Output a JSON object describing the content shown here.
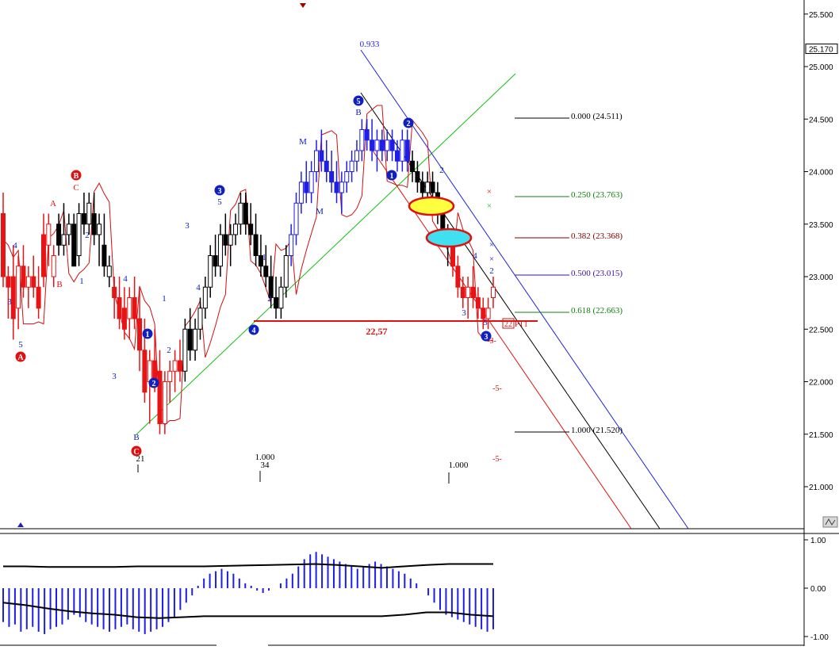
{
  "colors": {
    "background": "#ffffff",
    "bull_candle": "#1e1ee6",
    "bear_candle": "#e61414",
    "neutral_candle": "#000000",
    "ma_line": "#d01010",
    "channel_green": "#10c010",
    "channel_blue": "#2020e0",
    "channel_black": "#000000",
    "channel_red": "#e01010",
    "wave_blue": "#1020c0",
    "wave_red": "#e01010",
    "ellipse_yellow": "#ffff40",
    "ellipse_cyan": "#40e0f0",
    "ellipse_border": "#e01010",
    "osc_bar": "#1e1ee6"
  },
  "price_axis": {
    "ticks": [
      "25.500",
      "25.000",
      "24.500",
      "24.000",
      "23.500",
      "23.000",
      "22.500",
      "22.000",
      "21.500",
      "21.000"
    ],
    "current_label": "25.170",
    "corner_icon": "zoom-icon"
  },
  "osc_axis": {
    "ticks": [
      "1.00",
      "0.00",
      "-1.00"
    ]
  },
  "fib_levels": [
    {
      "label": "0.000 (24.511)",
      "value": 24.511,
      "color": "#000000"
    },
    {
      "label": "0.250 (23.763)",
      "value": 23.763,
      "color": "#108010"
    },
    {
      "label": "0.382 (23.368)",
      "value": 23.368,
      "color": "#800000"
    },
    {
      "label": "0.500 (23.015)",
      "value": 23.015,
      "color": "#4010a0"
    },
    {
      "label": "0.618 (22.663)",
      "value": 22.663,
      "color": "#108010"
    },
    {
      "label": "1.000 (21.520)",
      "value": 21.52,
      "color": "#000000"
    }
  ],
  "support_line": {
    "label": "22,57",
    "value": 22.57
  },
  "wave_labels": [
    {
      "text": "5",
      "style": "circle",
      "color": "blue",
      "x": 452,
      "y": 127
    },
    {
      "text": "3",
      "style": "circle",
      "color": "blue",
      "x": 277,
      "y": 240
    },
    {
      "text": "4",
      "style": "circle",
      "color": "blue",
      "x": 320,
      "y": 416
    },
    {
      "text": "1",
      "style": "circle",
      "color": "blue",
      "x": 186,
      "y": 421
    },
    {
      "text": "2",
      "style": "circle",
      "color": "blue",
      "x": 194,
      "y": 483
    },
    {
      "text": "2",
      "style": "circle",
      "color": "blue",
      "x": 515,
      "y": 155
    },
    {
      "text": "1",
      "style": "circle",
      "color": "blue",
      "x": 494,
      "y": 221
    },
    {
      "text": "3",
      "style": "circle",
      "color": "blue",
      "x": 613,
      "y": 424
    },
    {
      "text": "B",
      "style": "circle",
      "color": "red",
      "x": 96,
      "y": 221
    },
    {
      "text": "A",
      "style": "circle",
      "color": "red",
      "x": 26,
      "y": 450
    },
    {
      "text": "C",
      "style": "circle",
      "color": "red",
      "x": 172,
      "y": 569
    },
    {
      "text": "C",
      "style": "plain",
      "color": "red",
      "x": 96,
      "y": 240
    },
    {
      "text": "A",
      "style": "plain",
      "color": "red",
      "x": 67,
      "y": 260
    },
    {
      "text": "B",
      "style": "plain",
      "color": "red",
      "x": 75,
      "y": 362
    },
    {
      "text": "4",
      "style": "plain",
      "color": "blue",
      "x": 19,
      "y": 313
    },
    {
      "text": "3",
      "style": "plain",
      "color": "blue",
      "x": 12,
      "y": 384
    },
    {
      "text": "5",
      "style": "plain",
      "color": "blue",
      "x": 26,
      "y": 438
    },
    {
      "text": "1",
      "style": "plain",
      "color": "blue",
      "x": 103,
      "y": 358
    },
    {
      "text": "2",
      "style": "plain",
      "color": "blue",
      "x": 110,
      "y": 300
    },
    {
      "text": "4",
      "style": "plain",
      "color": "blue",
      "x": 158,
      "y": 355
    },
    {
      "text": "3",
      "style": "plain",
      "color": "blue",
      "x": 144,
      "y": 478
    },
    {
      "text": "3",
      "style": "plain",
      "color": "blue",
      "x": 236,
      "y": 288
    },
    {
      "text": "4",
      "style": "plain",
      "color": "blue",
      "x": 250,
      "y": 366
    },
    {
      "text": "1",
      "style": "plain",
      "color": "blue",
      "x": 207,
      "y": 380
    },
    {
      "text": "2",
      "style": "plain",
      "color": "blue",
      "x": 213,
      "y": 445
    },
    {
      "text": "5",
      "style": "plain",
      "color": "blue",
      "x": 277,
      "y": 258
    },
    {
      "text": "1",
      "style": "plain",
      "color": "blue",
      "x": 333,
      "y": 328
    },
    {
      "text": "2",
      "style": "plain",
      "color": "blue",
      "x": 340,
      "y": 380
    },
    {
      "text": "M",
      "style": "plain",
      "color": "blue",
      "x": 382,
      "y": 182
    },
    {
      "text": "M",
      "style": "plain",
      "color": "blue",
      "x": 403,
      "y": 270
    },
    {
      "text": "B",
      "style": "plain",
      "color": "blue",
      "x": 452,
      "y": 145
    },
    {
      "text": "B",
      "style": "plain",
      "color": "blue",
      "x": 172,
      "y": 555
    },
    {
      "text": "2",
      "style": "plain",
      "color": "blue",
      "x": 557,
      "y": 218
    },
    {
      "text": "4",
      "style": "plain",
      "color": "blue",
      "x": 599,
      "y": 326
    },
    {
      "text": "3",
      "style": "plain",
      "color": "blue",
      "x": 585,
      "y": 398
    },
    {
      "text": "5",
      "style": "plain",
      "color": "blue",
      "x": 612,
      "y": 410
    },
    {
      "text": "2",
      "style": "plain",
      "color": "blue",
      "x": 620,
      "y": 345
    }
  ],
  "dash_labels": [
    {
      "text": "-3-",
      "x": 620,
      "y": 433
    },
    {
      "text": "-5-",
      "x": 627,
      "y": 493
    },
    {
      "text": "-5-",
      "x": 627,
      "y": 582
    }
  ],
  "time_markers": [
    {
      "text": "21",
      "x": 177,
      "y": 582
    },
    {
      "text": "1.000",
      "x": 334,
      "y": 580
    },
    {
      "text": "34",
      "x": 334,
      "y": 590
    },
    {
      "text": "1.000",
      "x": 578,
      "y": 590
    }
  ],
  "ratio_label": {
    "text": "0.933"
  },
  "target_box": {
    "text": "22",
    "suffix": "PT1"
  },
  "chart_data": {
    "type": "candlestick",
    "title": "",
    "xlabel": "",
    "ylabel": "",
    "ylim": [
      20.75,
      25.6
    ],
    "grid": false,
    "candles": [
      [
        23.6,
        23.8,
        22.9,
        23.0,
        "bear"
      ],
      [
        23.0,
        23.1,
        22.6,
        22.9,
        "bear"
      ],
      [
        23.0,
        23.3,
        22.4,
        22.6,
        "bear"
      ],
      [
        22.7,
        23.2,
        22.5,
        23.1,
        "bear"
      ],
      [
        23.1,
        23.3,
        22.8,
        22.9,
        "bear"
      ],
      [
        22.9,
        23.1,
        22.7,
        23.0,
        "bear"
      ],
      [
        23.0,
        23.2,
        22.8,
        22.9,
        "bear"
      ],
      [
        22.9,
        23.1,
        22.6,
        22.7,
        "bear"
      ],
      [
        23.4,
        23.6,
        22.9,
        23.0,
        "bear"
      ],
      [
        23.3,
        23.6,
        23.1,
        23.5,
        "bear"
      ],
      [
        23.0,
        23.3,
        22.9,
        23.2,
        "bear"
      ],
      [
        23.5,
        23.6,
        23.2,
        23.3,
        "neutral"
      ],
      [
        23.3,
        23.7,
        23.2,
        23.4,
        "neutral"
      ],
      [
        23.4,
        23.6,
        23.3,
        23.5,
        "neutral"
      ],
      [
        23.5,
        23.6,
        23.1,
        23.1,
        "neutral"
      ],
      [
        23.2,
        23.7,
        23.1,
        23.6,
        "neutral"
      ],
      [
        23.6,
        23.8,
        23.4,
        23.5,
        "neutral"
      ],
      [
        23.5,
        23.8,
        23.4,
        23.7,
        "neutral"
      ],
      [
        23.6,
        23.8,
        23.3,
        23.4,
        "neutral"
      ],
      [
        23.4,
        23.6,
        23.1,
        23.5,
        "neutral"
      ],
      [
        23.3,
        23.6,
        23.0,
        23.1,
        "neutral"
      ],
      [
        23.0,
        23.2,
        22.9,
        23.1,
        "neutral"
      ],
      [
        22.9,
        23.0,
        22.6,
        22.8,
        "bear"
      ],
      [
        22.8,
        23.0,
        22.5,
        22.6,
        "bear"
      ],
      [
        22.7,
        22.9,
        22.4,
        22.5,
        "bear"
      ],
      [
        22.6,
        22.9,
        22.4,
        22.8,
        "bear"
      ],
      [
        22.8,
        23.0,
        22.5,
        22.6,
        "bear"
      ],
      [
        22.6,
        22.9,
        22.1,
        22.3,
        "bear"
      ],
      [
        22.3,
        22.6,
        21.8,
        21.9,
        "bear"
      ],
      [
        22.0,
        22.3,
        21.6,
        22.2,
        "bear"
      ],
      [
        22.2,
        22.5,
        21.9,
        22.0,
        "bear"
      ],
      [
        22.1,
        22.3,
        21.5,
        21.6,
        "bear"
      ],
      [
        21.6,
        22.1,
        21.5,
        22.0,
        "bear"
      ],
      [
        22.0,
        22.2,
        21.8,
        22.1,
        "bear"
      ],
      [
        22.1,
        22.3,
        21.9,
        22.2,
        "bear"
      ],
      [
        22.2,
        22.4,
        22.0,
        22.1,
        "bear"
      ],
      [
        22.1,
        22.6,
        22.0,
        22.5,
        "neutral"
      ],
      [
        22.5,
        22.7,
        22.2,
        22.3,
        "neutral"
      ],
      [
        22.3,
        22.6,
        22.2,
        22.5,
        "neutral"
      ],
      [
        22.5,
        22.8,
        22.4,
        22.7,
        "neutral"
      ],
      [
        22.7,
        23.0,
        22.6,
        22.9,
        "neutral"
      ],
      [
        22.9,
        23.3,
        22.8,
        23.2,
        "neutral"
      ],
      [
        23.2,
        23.4,
        23.0,
        23.1,
        "neutral"
      ],
      [
        23.1,
        23.5,
        23.0,
        23.4,
        "neutral"
      ],
      [
        23.4,
        23.6,
        23.2,
        23.3,
        "neutral"
      ],
      [
        23.3,
        23.5,
        23.1,
        23.4,
        "neutral"
      ],
      [
        23.4,
        23.6,
        23.3,
        23.5,
        "neutral"
      ],
      [
        23.5,
        23.8,
        23.4,
        23.7,
        "neutral"
      ],
      [
        23.7,
        23.8,
        23.4,
        23.5,
        "neutral"
      ],
      [
        23.5,
        23.7,
        23.3,
        23.4,
        "neutral"
      ],
      [
        23.4,
        23.6,
        23.1,
        23.2,
        "neutral"
      ],
      [
        23.2,
        23.4,
        23.0,
        23.1,
        "neutral"
      ],
      [
        23.1,
        23.3,
        22.9,
        23.0,
        "neutral"
      ],
      [
        23.0,
        23.2,
        22.7,
        22.8,
        "neutral"
      ],
      [
        22.8,
        23.0,
        22.6,
        22.7,
        "neutral"
      ],
      [
        22.7,
        23.0,
        22.6,
        22.9,
        "neutral"
      ],
      [
        22.9,
        23.3,
        22.8,
        23.2,
        "neutral"
      ],
      [
        23.2,
        23.5,
        23.1,
        23.4,
        "bull"
      ],
      [
        23.4,
        23.8,
        23.3,
        23.7,
        "bull"
      ],
      [
        23.7,
        24.0,
        23.6,
        23.9,
        "bull"
      ],
      [
        23.9,
        24.1,
        23.7,
        23.8,
        "bull"
      ],
      [
        23.8,
        24.1,
        23.7,
        24.0,
        "bull"
      ],
      [
        24.0,
        24.3,
        23.9,
        24.2,
        "bull"
      ],
      [
        24.2,
        24.4,
        24.0,
        24.1,
        "bull"
      ],
      [
        24.1,
        24.3,
        23.9,
        24.0,
        "bull"
      ],
      [
        24.0,
        24.2,
        23.8,
        23.9,
        "bull"
      ],
      [
        23.9,
        24.1,
        23.7,
        23.8,
        "bull"
      ],
      [
        23.8,
        24.0,
        23.6,
        23.9,
        "bull"
      ],
      [
        23.9,
        24.1,
        23.8,
        24.0,
        "bull"
      ],
      [
        24.0,
        24.2,
        23.9,
        24.1,
        "bull"
      ],
      [
        24.1,
        24.3,
        24.0,
        24.2,
        "bull"
      ],
      [
        24.2,
        24.5,
        24.1,
        24.4,
        "bull"
      ],
      [
        24.4,
        24.5,
        24.2,
        24.3,
        "bull"
      ],
      [
        24.3,
        24.5,
        24.1,
        24.2,
        "bull"
      ],
      [
        24.2,
        24.4,
        24.0,
        24.3,
        "bull"
      ],
      [
        24.3,
        24.4,
        24.1,
        24.2,
        "bull"
      ],
      [
        24.2,
        24.4,
        24.1,
        24.3,
        "bull"
      ],
      [
        24.3,
        24.4,
        24.1,
        24.2,
        "bull"
      ],
      [
        24.2,
        24.3,
        24.0,
        24.1,
        "bull"
      ],
      [
        24.1,
        24.4,
        24.0,
        24.3,
        "bull"
      ],
      [
        24.3,
        24.4,
        24.0,
        24.1,
        "bull"
      ],
      [
        24.1,
        24.2,
        23.9,
        24.0,
        "neutral"
      ],
      [
        24.0,
        24.1,
        23.8,
        23.9,
        "neutral"
      ],
      [
        23.9,
        24.0,
        23.7,
        23.8,
        "neutral"
      ],
      [
        23.8,
        24.0,
        23.7,
        23.9,
        "neutral"
      ],
      [
        23.9,
        24.0,
        23.7,
        23.8,
        "neutral"
      ],
      [
        23.8,
        23.9,
        23.5,
        23.6,
        "neutral"
      ],
      [
        23.6,
        23.7,
        23.3,
        23.4,
        "neutral"
      ],
      [
        23.4,
        23.5,
        23.1,
        23.3,
        "neutral"
      ],
      [
        23.3,
        23.4,
        23.0,
        23.1,
        "bear"
      ],
      [
        23.1,
        23.2,
        22.8,
        22.9,
        "bear"
      ],
      [
        22.9,
        23.0,
        22.7,
        22.8,
        "bear"
      ],
      [
        22.8,
        23.0,
        22.6,
        22.9,
        "bear"
      ],
      [
        22.9,
        23.1,
        22.7,
        22.8,
        "bear"
      ],
      [
        22.8,
        22.9,
        22.6,
        22.7,
        "bear"
      ],
      [
        22.7,
        22.8,
        22.5,
        22.6,
        "bear"
      ],
      [
        22.6,
        22.8,
        22.5,
        22.7,
        "bear"
      ],
      [
        22.8,
        23.0,
        22.7,
        22.9,
        "bear"
      ]
    ],
    "oscillator": {
      "ylim": [
        -1.0,
        1.0
      ],
      "bars": [
        -0.7,
        -0.8,
        -0.75,
        -0.9,
        -0.85,
        -0.8,
        -0.9,
        -0.95,
        -0.85,
        -0.8,
        -0.75,
        -0.65,
        -0.55,
        -0.6,
        -0.7,
        -0.75,
        -0.8,
        -0.85,
        -0.9,
        -0.85,
        -0.8,
        -0.75,
        -0.85,
        -0.9,
        -0.95,
        -0.9,
        -0.85,
        -0.8,
        -0.7,
        -0.6,
        -0.45,
        -0.3,
        -0.15,
        0.05,
        0.2,
        0.3,
        0.35,
        0.4,
        0.35,
        0.3,
        0.2,
        0.1,
        0.05,
        -0.05,
        -0.1,
        -0.05,
        0.0,
        0.1,
        0.2,
        0.3,
        0.45,
        0.6,
        0.7,
        0.75,
        0.7,
        0.65,
        0.6,
        0.55,
        0.5,
        0.45,
        0.4,
        0.45,
        0.5,
        0.55,
        0.5,
        0.45,
        0.4,
        0.35,
        0.3,
        0.2,
        0.1,
        0.0,
        -0.15,
        -0.3,
        -0.45,
        -0.55,
        -0.6,
        -0.65,
        -0.7,
        -0.75,
        -0.8,
        -0.85,
        -0.9,
        -0.85
      ],
      "signal_upper": [
        0.45,
        0.45,
        0.44,
        0.44,
        0.44,
        0.44,
        0.45,
        0.45,
        0.45,
        0.45,
        0.46,
        0.47,
        0.48,
        0.49,
        0.5,
        0.48,
        0.45,
        0.42,
        0.45,
        0.48,
        0.5,
        0.5,
        0.5
      ],
      "signal_lower": [
        -0.3,
        -0.35,
        -0.42,
        -0.48,
        -0.52,
        -0.55,
        -0.6,
        -0.62,
        -0.6,
        -0.58,
        -0.58,
        -0.58,
        -0.58,
        -0.58,
        -0.58,
        -0.58,
        -0.58,
        -0.58,
        -0.55,
        -0.5,
        -0.5,
        -0.55,
        -0.58
      ]
    }
  }
}
